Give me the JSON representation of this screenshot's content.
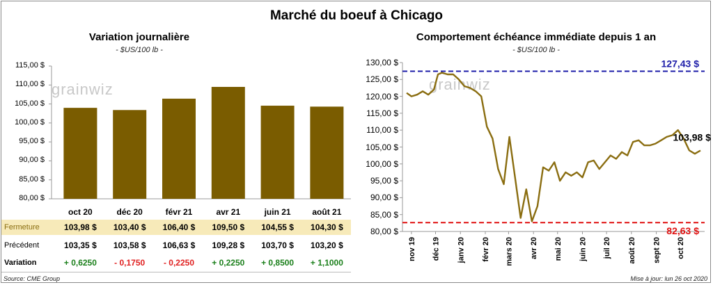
{
  "main_title": "Marché du boeuf à Chicago",
  "left": {
    "title": "Variation  journalière",
    "unit": "- $US/100 lb -",
    "watermark": "grainwiz",
    "yticks": [
      "115,00 $",
      "110,00 $",
      "105,00 $",
      "100,00 $",
      "95,00 $",
      "90,00 $",
      "85,00 $",
      "80,00 $"
    ],
    "table": {
      "row_labels": {
        "close": "Fermeture",
        "previous": "Précédent",
        "change": "Variation"
      },
      "close_cells": [
        "103,98  $",
        "103,40  $",
        "106,40  $",
        "109,50  $",
        "104,55  $",
        "104,30  $"
      ],
      "previous_cells": [
        "103,35  $",
        "103,58  $",
        "106,63  $",
        "109,28  $",
        "103,70  $",
        "103,20  $"
      ],
      "change_cells": [
        "+ 0,6250",
        "- 0,1750",
        "- 0,2250",
        "+ 0,2250",
        "+ 0,8500",
        "+ 1,1000"
      ],
      "change_colors": [
        "#1a7f1a",
        "#e02020",
        "#e02020",
        "#1a7f1a",
        "#1a7f1a",
        "#1a7f1a"
      ],
      "close_row_bg": "#f7eab9"
    }
  },
  "right": {
    "title": "Comportement  échéance immédiate depuis 1 an",
    "unit": "- $US/100 lb -",
    "watermark": "grainwiz",
    "yticks": [
      "130,00 $",
      "125,00 $",
      "120,00 $",
      "115,00 $",
      "110,00 $",
      "105,00 $",
      "100,00 $",
      "95,00 $",
      "90,00 $",
      "85,00 $",
      "80,00 $"
    ],
    "xticks": [
      "nov 19",
      "déc 19",
      "janv 20",
      "févr 20",
      "mars 20",
      "avr 20",
      "mai 20",
      "juin 20",
      "juil 20",
      "août 20",
      "sept 20",
      "oct 20"
    ],
    "high_label": "127,43 $",
    "low_label": "82,63 $",
    "last_label": "103,98 $",
    "high_color": "#1c1ca8",
    "low_color": "#e01010"
  },
  "chart_data": [
    {
      "type": "bar",
      "title": "Variation  journalière",
      "categories": [
        "oct 20",
        "déc 20",
        "févr 21",
        "avr 21",
        "juin 21",
        "août 21"
      ],
      "values": [
        103.98,
        103.4,
        106.4,
        109.5,
        104.55,
        104.3
      ],
      "ylim": [
        80,
        115
      ],
      "color": "#7a5c00"
    },
    {
      "type": "line",
      "title": "Comportement  échéance immédiate depuis 1 an",
      "ylim": [
        80,
        130
      ],
      "color": "#8a6d10",
      "x": [
        "2019-10-26",
        "2019-11-01",
        "2019-11-08",
        "2019-11-15",
        "2019-11-22",
        "2019-11-29",
        "2019-12-04",
        "2019-12-09",
        "2019-12-16",
        "2019-12-23",
        "2019-12-30",
        "2020-01-06",
        "2020-01-13",
        "2020-01-20",
        "2020-01-27",
        "2020-02-03",
        "2020-02-10",
        "2020-02-17",
        "2020-02-24",
        "2020-03-02",
        "2020-03-09",
        "2020-03-16",
        "2020-03-23",
        "2020-03-30",
        "2020-04-06",
        "2020-04-13",
        "2020-04-20",
        "2020-04-27",
        "2020-05-04",
        "2020-05-11",
        "2020-05-18",
        "2020-05-25",
        "2020-06-01",
        "2020-06-08",
        "2020-06-15",
        "2020-06-22",
        "2020-06-29",
        "2020-07-06",
        "2020-07-13",
        "2020-07-20",
        "2020-07-27",
        "2020-08-03",
        "2020-08-10",
        "2020-08-17",
        "2020-08-24",
        "2020-08-31",
        "2020-09-07",
        "2020-09-14",
        "2020-09-21",
        "2020-09-28",
        "2020-10-05",
        "2020-10-12",
        "2020-10-19",
        "2020-10-26"
      ],
      "values": [
        121.0,
        120.0,
        120.5,
        121.5,
        120.5,
        122.0,
        126.5,
        127.0,
        126.5,
        126.5,
        125.0,
        123.0,
        122.5,
        121.5,
        120.0,
        111.0,
        107.5,
        98.5,
        94.0,
        108.0,
        96.0,
        84.0,
        92.5,
        83.0,
        87.5,
        99.0,
        98.0,
        100.5,
        95.0,
        97.5,
        96.5,
        97.5,
        96.0,
        100.5,
        101.0,
        98.5,
        100.5,
        102.5,
        101.5,
        103.5,
        102.5,
        106.5,
        107.0,
        105.5,
        105.5,
        106.0,
        107.0,
        108.0,
        108.5,
        110.0,
        107.5,
        104.0,
        103.0,
        103.98
      ],
      "reference_lines": {
        "high": 127.43,
        "low": 82.63
      },
      "last_value": 103.98
    }
  ],
  "footer": {
    "source": "Source: CME Group",
    "updated": "Mise à jour: lun 26 oct 2020"
  }
}
